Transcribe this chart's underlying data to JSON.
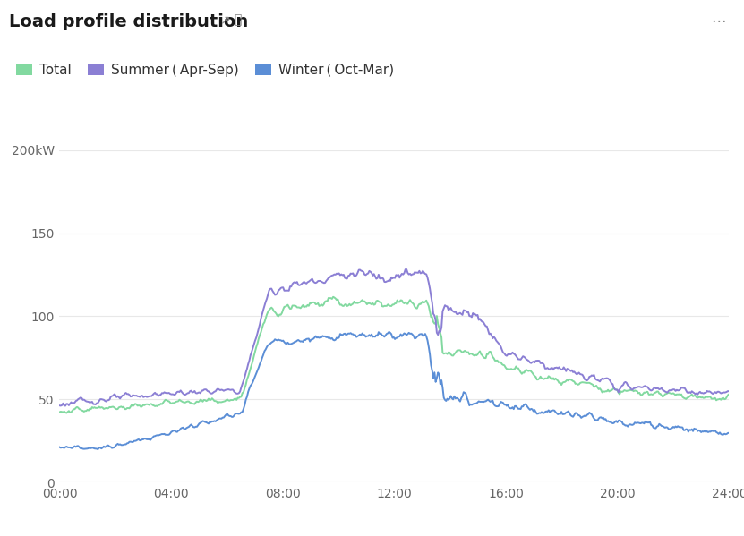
{
  "title": "Load profile distribution",
  "legend": [
    "Total",
    "Summer ( Apr-Sep)",
    "Winter ( Oct-Mar)"
  ],
  "colors": {
    "total": "#82D9A0",
    "summer": "#8B7FD4",
    "winter": "#5B8ED6"
  },
  "ylim": [
    0,
    200
  ],
  "yticks": [
    0,
    50,
    100,
    150,
    200
  ],
  "ytick_labels": [
    "0",
    "50",
    "100",
    "150",
    "200kW"
  ],
  "xticks": [
    0,
    4,
    8,
    12,
    16,
    20,
    24
  ],
  "xtick_labels": [
    "00:00",
    "04:00",
    "08:00",
    "12:00",
    "16:00",
    "20:00",
    "24:00"
  ],
  "background_color": "#ffffff",
  "grid_color": "#e8e8e8",
  "line_width": 1.4
}
